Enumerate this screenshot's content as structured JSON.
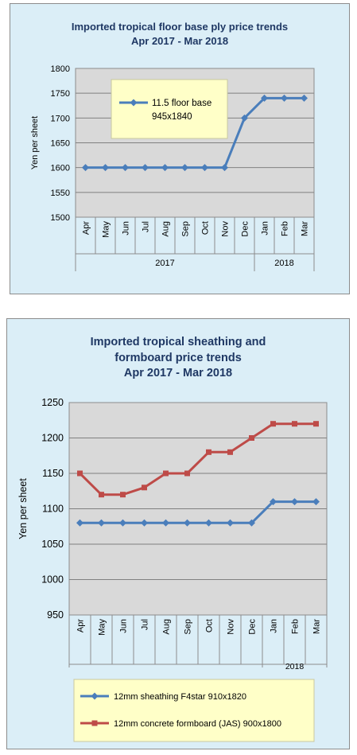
{
  "chart_data": [
    {
      "type": "line",
      "title_lines": [
        "Imported tropical floor base ply price trends",
        "Apr 2017 - Mar 2018"
      ],
      "ylabel": "Yen per sheet",
      "ylim": [
        1500,
        1800
      ],
      "yticks": [
        "1500",
        "1550",
        "1600",
        "1650",
        "1700",
        "1750",
        "1800"
      ],
      "categories": [
        "Apr",
        "May",
        "Jun",
        "Jul",
        "Aug",
        "Sep",
        "Oct",
        "Nov",
        "Dec",
        "Jan",
        "Feb",
        "Mar"
      ],
      "year_groups": [
        {
          "label": "2017",
          "count": 9
        },
        {
          "label": "2018",
          "count": 3
        }
      ],
      "grid": true,
      "legend_position": "inside-top-center",
      "series": [
        {
          "name_lines": [
            "11.5 floor base",
            "945x1840"
          ],
          "color": "#4a7ebb",
          "marker": "diamond",
          "values": [
            1600,
            1600,
            1600,
            1600,
            1600,
            1600,
            1600,
            1600,
            1700,
            1740,
            1740,
            1740
          ]
        }
      ]
    },
    {
      "type": "line",
      "title_lines": [
        "Imported tropical sheathing and",
        "formboard price trends",
        "Apr 2017 -  Mar 2018"
      ],
      "ylabel": "Yen per sheet",
      "ylim": [
        950,
        1250
      ],
      "yticks": [
        "950",
        "1000",
        "1050",
        "1100",
        "1150",
        "1200",
        "1250"
      ],
      "categories": [
        "Apr",
        "May",
        "Jun",
        "Jul",
        "Aug",
        "Sep",
        "Oct",
        "Nov",
        "Dec",
        "Jan",
        "Feb",
        "Mar"
      ],
      "year_groups": [
        {
          "label": "",
          "count": 9
        },
        {
          "label": "2018",
          "count": 3
        }
      ],
      "grid": true,
      "legend_position": "bottom",
      "series": [
        {
          "name_lines": [
            "12mm sheathing F4star 910x1820"
          ],
          "color": "#4a7ebb",
          "marker": "diamond",
          "values": [
            1080,
            1080,
            1080,
            1080,
            1080,
            1080,
            1080,
            1080,
            1080,
            1110,
            1110,
            1110
          ]
        },
        {
          "name_lines": [
            "12mm concrete formboard (JAS) 900x1800"
          ],
          "color": "#be4b48",
          "marker": "square",
          "values": [
            1150,
            1120,
            1120,
            1130,
            1150,
            1150,
            1180,
            1180,
            1200,
            1220,
            1220,
            1220
          ]
        }
      ]
    }
  ]
}
